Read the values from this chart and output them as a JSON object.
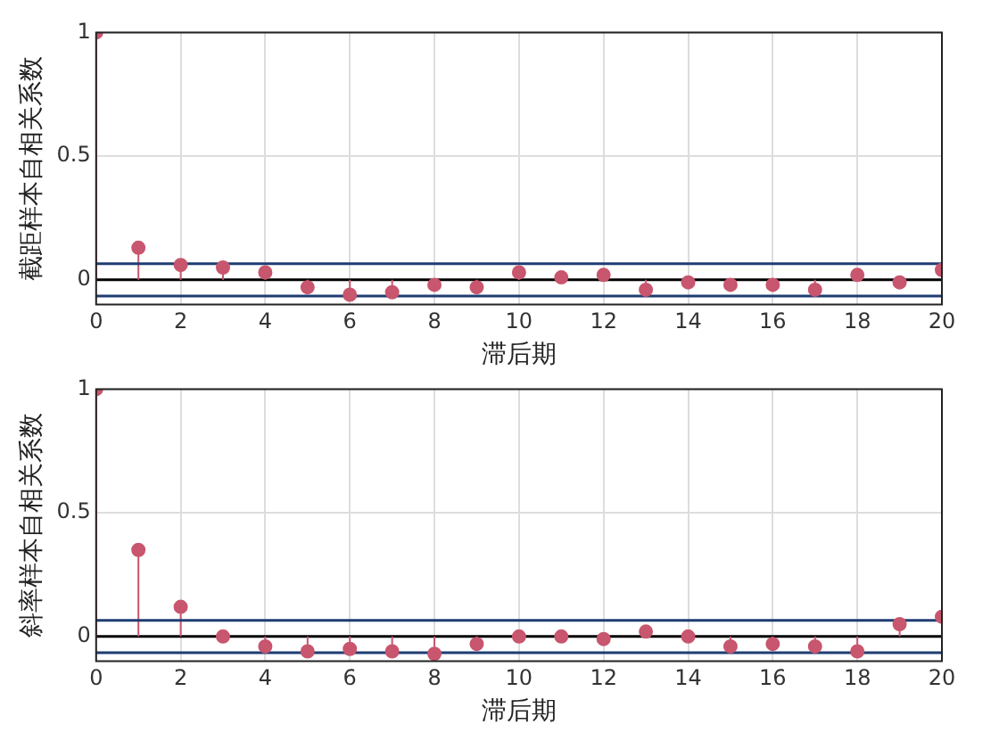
{
  "chart_data": [
    {
      "type": "lollipop",
      "xlabel": "滞后期",
      "ylabel": "截距样本自相关系数",
      "x": [
        0,
        1,
        2,
        3,
        4,
        5,
        6,
        7,
        8,
        9,
        10,
        11,
        12,
        13,
        14,
        15,
        16,
        17,
        18,
        19,
        20
      ],
      "color": "#c8566e",
      "values": [
        1,
        0.13,
        0.06,
        0.05,
        0.03,
        -0.03,
        -0.06,
        -0.05,
        -0.02,
        -0.03,
        0.03,
        0.01,
        0.02,
        -0.04,
        -0.01,
        -0.02,
        -0.02,
        -0.04,
        0.02,
        -0.01,
        0.04
      ],
      "xlim": [
        0,
        20
      ],
      "xticks": [
        0,
        2,
        4,
        6,
        8,
        10,
        12,
        14,
        16,
        18,
        20
      ],
      "ylim": [
        -0.1,
        1
      ],
      "yticks": [
        0,
        0.5,
        1
      ],
      "grid": true,
      "marker": "circle",
      "ref_lines": [
        {
          "axis": "y",
          "value": 0.065,
          "color": "#1f3d73"
        },
        {
          "axis": "y",
          "value": -0.065,
          "color": "#1f3d73"
        }
      ]
    },
    {
      "type": "lollipop",
      "xlabel": "滞后期",
      "ylabel": "斜率样本自相关系数",
      "x": [
        0,
        1,
        2,
        3,
        4,
        5,
        6,
        7,
        8,
        9,
        10,
        11,
        12,
        13,
        14,
        15,
        16,
        17,
        18,
        19,
        20
      ],
      "color": "#c8566e",
      "values": [
        1,
        0.35,
        0.12,
        0,
        -0.04,
        -0.06,
        -0.05,
        -0.06,
        -0.07,
        -0.03,
        0,
        0,
        -0.01,
        0.02,
        0,
        -0.04,
        -0.03,
        -0.04,
        -0.06,
        0.05,
        0.08
      ],
      "xlim": [
        0,
        20
      ],
      "xticks": [
        0,
        2,
        4,
        6,
        8,
        10,
        12,
        14,
        16,
        18,
        20
      ],
      "ylim": [
        -0.1,
        1
      ],
      "yticks": [
        0,
        0.5,
        1
      ],
      "grid": true,
      "marker": "circle",
      "ref_lines": [
        {
          "axis": "y",
          "value": 0.065,
          "color": "#1f3d73"
        },
        {
          "axis": "y",
          "value": -0.065,
          "color": "#1f3d73"
        }
      ]
    }
  ]
}
